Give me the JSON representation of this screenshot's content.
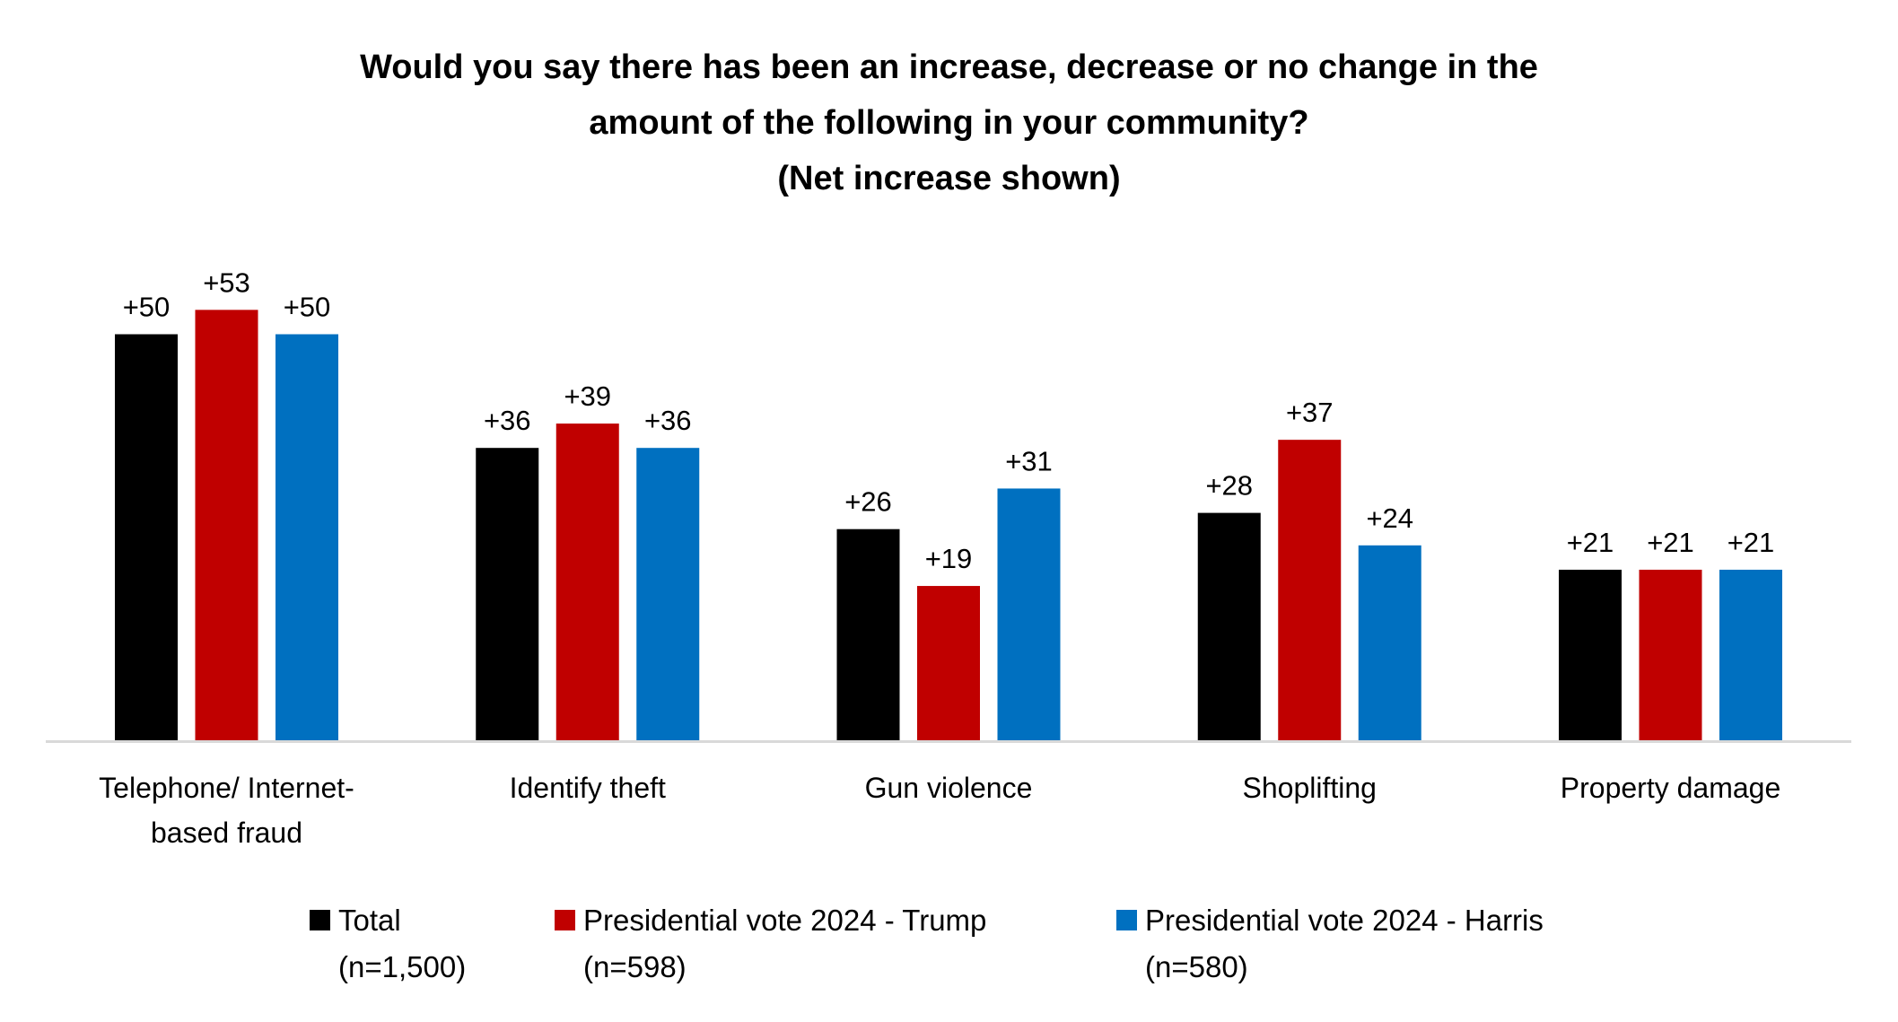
{
  "chart_data": {
    "type": "bar",
    "title": "Would you say there has been an increase, decrease or no change in the amount of the following in your community? (Net increase shown)",
    "title_lines": [
      "Would you say there has been an increase, decrease or no change in the",
      "amount of the following in your community?",
      "(Net increase shown)"
    ],
    "categories": [
      [
        "Telephone/ Internet-",
        "based fraud"
      ],
      [
        "Identify theft"
      ],
      [
        "Gun violence"
      ],
      [
        "Shoplifting"
      ],
      [
        "Property damage"
      ]
    ],
    "series": [
      {
        "name": "Total",
        "n_label": "(n=1,500)",
        "color": "#000000",
        "values": [
          50,
          36,
          26,
          28,
          21
        ]
      },
      {
        "name": "Presidential vote 2024 - Trump",
        "n_label": "(n=598)",
        "color": "#C00000",
        "values": [
          53,
          39,
          19,
          37,
          21
        ]
      },
      {
        "name": "Presidential vote 2024 - Harris",
        "n_label": "(n=580)",
        "color": "#0070C0",
        "values": [
          50,
          36,
          31,
          24,
          21
        ]
      }
    ],
    "data_label_prefix": "+",
    "xlabel": "",
    "ylabel": "",
    "ylim": [
      0,
      55
    ],
    "y_axis_visible": false,
    "grid": false,
    "legend_position": "bottom",
    "axis_color": "#D9D9D9"
  }
}
